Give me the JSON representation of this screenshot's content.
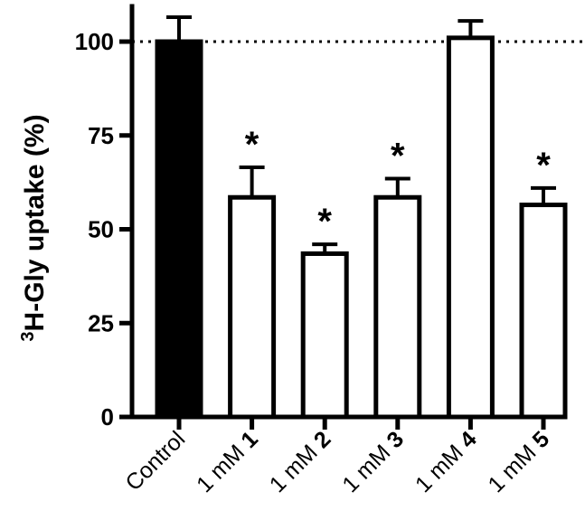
{
  "chart_data": {
    "type": "bar",
    "categories": [
      {
        "text": "Control",
        "bold_suffix": ""
      },
      {
        "text": "1 mM ",
        "bold_suffix": "1"
      },
      {
        "text": "1 mM ",
        "bold_suffix": "2"
      },
      {
        "text": "1 mM ",
        "bold_suffix": "3"
      },
      {
        "text": "1 mM ",
        "bold_suffix": "4"
      },
      {
        "text": "1 mM ",
        "bold_suffix": "5"
      }
    ],
    "values": [
      100,
      58.5,
      43.5,
      58.5,
      101,
      56.5
    ],
    "errors": [
      6.5,
      8,
      2.5,
      5,
      4.5,
      4.5
    ],
    "significance": [
      "",
      "*",
      "*",
      "*",
      "",
      "*"
    ],
    "fills": [
      "#000000",
      "#ffffff",
      "#ffffff",
      "#ffffff",
      "#ffffff",
      "#ffffff"
    ],
    "reference_line": 100,
    "ylim": [
      0,
      110
    ],
    "yticks": [
      0,
      25,
      50,
      75,
      100
    ],
    "ylabel": {
      "superscript": "3",
      "text": "H-Gly uptake (%)"
    },
    "xlabel": "",
    "title": ""
  }
}
